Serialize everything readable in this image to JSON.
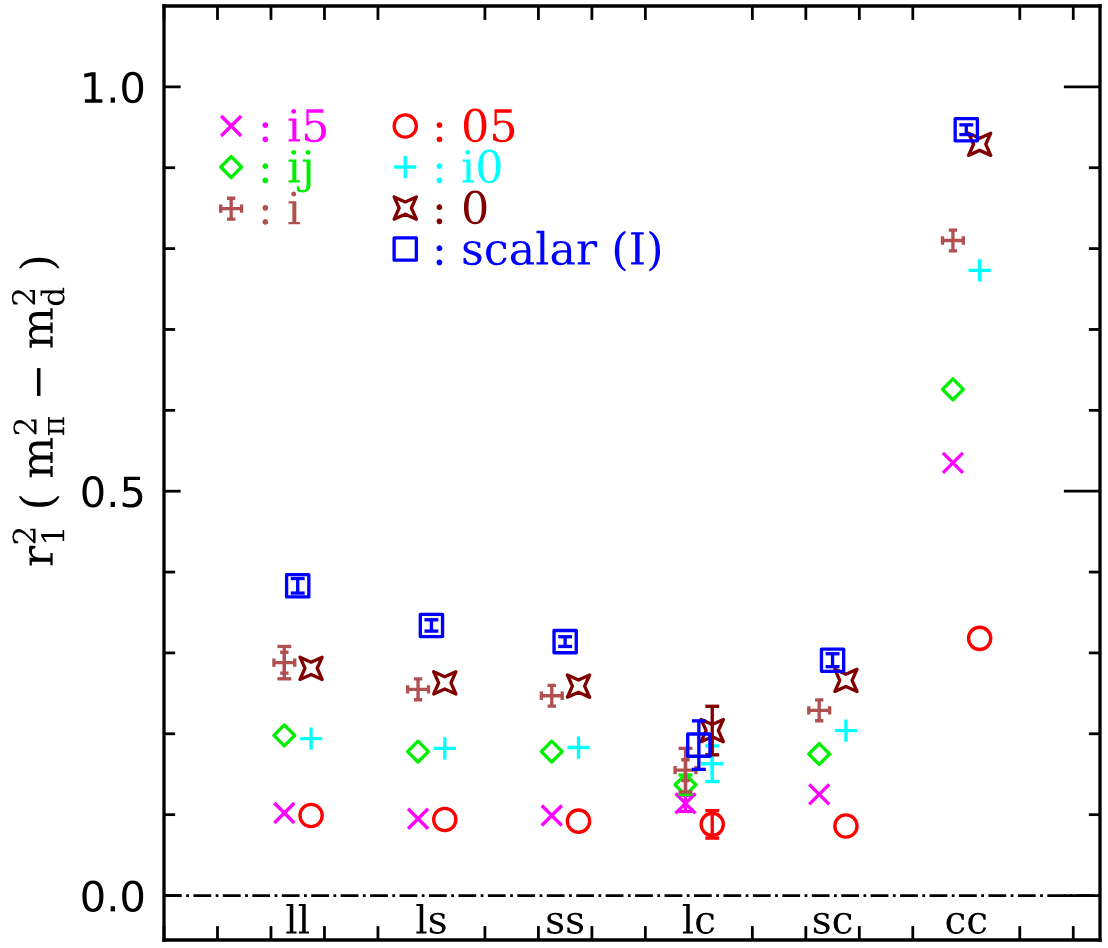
{
  "chart_data": {
    "type": "scatter",
    "ylabel": "r$^{2}$$_{1}$ ( m$^{2}$$_{π}$ − m$^{2}$$_{d}$ )",
    "categories": [
      "ll",
      "ls",
      "ss",
      "lc",
      "sc",
      "cc"
    ],
    "ylim": [
      -0.055,
      1.1
    ],
    "yticks": [
      {
        "value": 0,
        "label": "0.0"
      },
      {
        "value": 0.1,
        "label": null
      },
      {
        "value": 0.2,
        "label": null
      },
      {
        "value": 0.3,
        "label": null
      },
      {
        "value": 0.4,
        "label": null
      },
      {
        "value": 0.5,
        "label": "0.5"
      },
      {
        "value": 0.6,
        "label": null
      },
      {
        "value": 0.7,
        "label": null
      },
      {
        "value": 0.8,
        "label": null
      },
      {
        "value": 0.9,
        "label": null
      },
      {
        "value": 1.0,
        "label": "1.0"
      }
    ],
    "legend": "top left",
    "grid": false,
    "ref_lines": [
      {
        "axis": "y",
        "value": 0,
        "line_style": "dashdot",
        "color": "#000000"
      }
    ],
    "series": [
      {
        "name": ": i5",
        "color": "#ff00ff",
        "marker": "cross",
        "values": [
          0.102,
          0.095,
          0.099,
          0.114,
          0.125,
          0.535
        ],
        "errors": [
          null,
          null,
          null,
          0.01,
          null,
          null
        ]
      },
      {
        "name": ": ij",
        "color": "#00ee00",
        "marker": "diamond",
        "values": [
          0.198,
          0.178,
          0.178,
          0.137,
          0.175,
          0.626
        ],
        "errors": [
          null,
          null,
          null,
          0.012,
          null,
          null
        ]
      },
      {
        "name": ": i",
        "color": "#b05050",
        "values": [
          0.288,
          0.255,
          0.247,
          0.155,
          0.229,
          0.81
        ],
        "errors": [
          0.02,
          null,
          null,
          0.027,
          null,
          null
        ]
      },
      {
        "name": ": 05",
        "color": "#ff0000",
        "marker": "circle",
        "values": [
          0.099,
          0.094,
          0.092,
          0.088,
          0.086,
          0.318
        ],
        "errors": [
          null,
          null,
          null,
          0.017,
          null,
          null
        ]
      },
      {
        "name": ": i0",
        "color": "#00ffff",
        "marker": "plus",
        "values": [
          0.194,
          0.182,
          0.183,
          0.163,
          0.204,
          0.773
        ],
        "errors": [
          null,
          null,
          null,
          0.022,
          null,
          null
        ]
      },
      {
        "name": ": 0",
        "color": "#800000",
        "marker": "star",
        "values": [
          0.281,
          0.263,
          0.259,
          0.204,
          0.266,
          0.929
        ],
        "errors": [
          null,
          null,
          null,
          0.03,
          null,
          null
        ]
      },
      {
        "name": ": scalar (I)",
        "color": "#0000ff",
        "marker": "square",
        "values": [
          0.383,
          0.334,
          0.314,
          0.186,
          0.291,
          0.947
        ],
        "errors": [
          0.009,
          0.007,
          0.006,
          0.03,
          0.008,
          0.006
        ]
      }
    ]
  }
}
